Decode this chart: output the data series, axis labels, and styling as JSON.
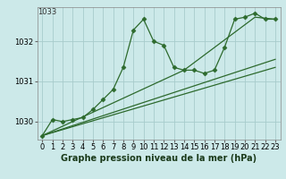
{
  "title": "Graphe pression niveau de la mer (hPa)",
  "background_color": "#cce9e9",
  "line_color": "#2d6a2d",
  "grid_color": "#a8cccc",
  "xlim": [
    -0.5,
    23.5
  ],
  "ylim": [
    1029.55,
    1032.85
  ],
  "yticks": [
    1030,
    1031,
    1032
  ],
  "ytick_label_top": 1033,
  "xticks": [
    0,
    1,
    2,
    3,
    4,
    5,
    6,
    7,
    8,
    9,
    10,
    11,
    12,
    13,
    14,
    15,
    16,
    17,
    18,
    19,
    20,
    21,
    22,
    23
  ],
  "main_line": {
    "x": [
      0,
      1,
      2,
      3,
      4,
      5,
      6,
      7,
      8,
      9,
      10,
      11,
      12,
      13,
      14,
      15,
      16,
      17,
      18,
      19,
      20,
      21,
      22,
      23
    ],
    "y": [
      1029.65,
      1030.05,
      1030.0,
      1030.05,
      1030.1,
      1030.3,
      1030.55,
      1030.8,
      1031.35,
      1032.28,
      1032.55,
      1032.0,
      1031.9,
      1031.35,
      1031.28,
      1031.28,
      1031.2,
      1031.28,
      1031.85,
      1032.55,
      1032.6,
      1032.7,
      1032.55,
      1032.55
    ]
  },
  "trend_lines": [
    {
      "x": [
        0,
        23
      ],
      "y": [
        1029.65,
        1031.35
      ]
    },
    {
      "x": [
        0,
        23
      ],
      "y": [
        1029.65,
        1031.55
      ]
    },
    {
      "x": [
        0,
        14,
        21,
        23
      ],
      "y": [
        1029.65,
        1031.28,
        1032.6,
        1032.55
      ]
    }
  ],
  "marker": "D",
  "markersize": 2.5,
  "linewidth": 0.9,
  "tick_fontsize": 6,
  "title_fontsize": 7,
  "top_label": "1033"
}
